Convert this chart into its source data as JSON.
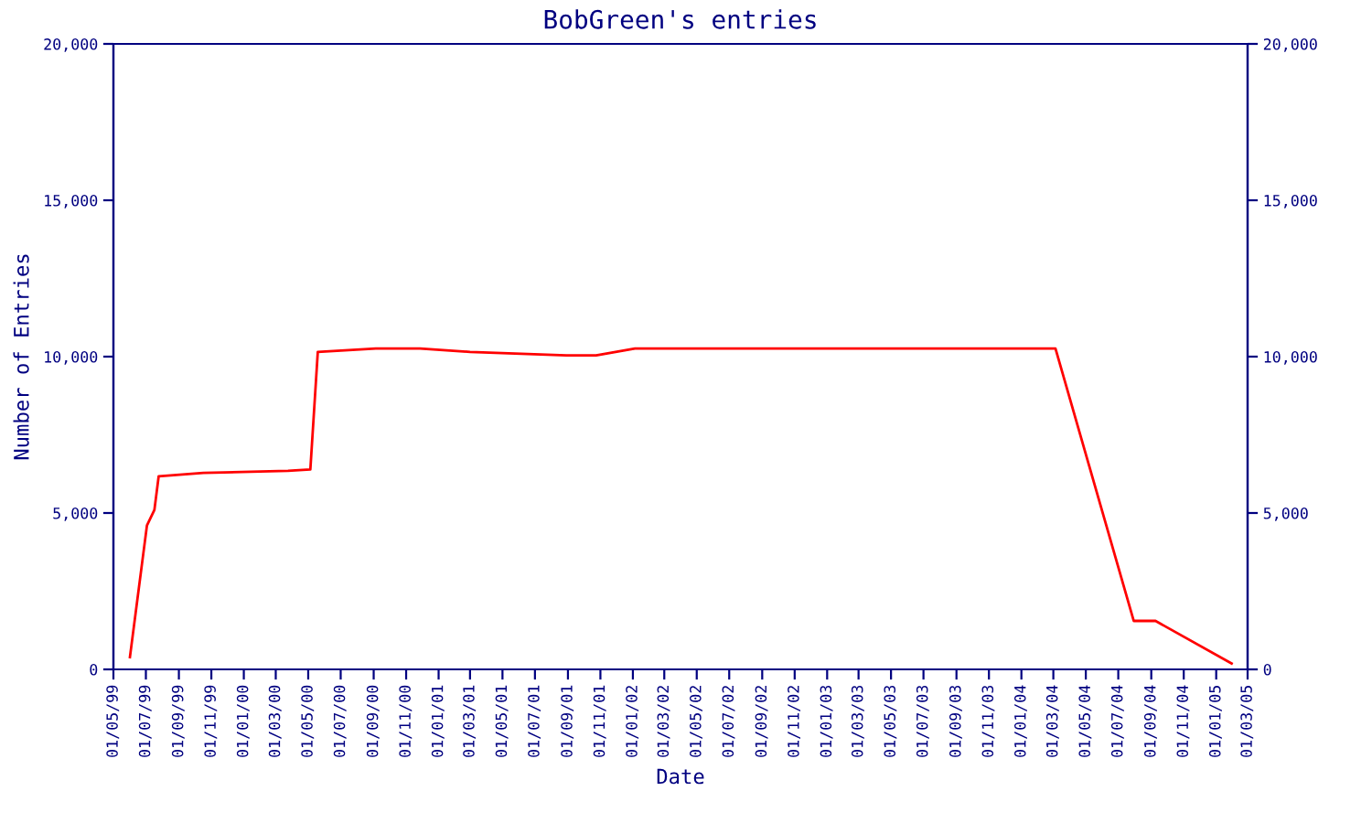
{
  "chart_data": {
    "type": "line",
    "title": "BobGreen's entries",
    "xlabel": "Date",
    "ylabel": "Number of Entries",
    "x": [
      "1999-06-01",
      "1999-07-03",
      "1999-07-17",
      "1999-07-25",
      "1999-10-17",
      "2000-03-24",
      "2000-05-05",
      "2000-05-19",
      "2000-09-05",
      "2000-11-27",
      "2001-03-01",
      "2001-08-29",
      "2001-10-24",
      "2002-01-05",
      "2004-03-05",
      "2004-07-30",
      "2004-09-09",
      "2005-01-30"
    ],
    "series": [
      {
        "color": "#ff0000",
        "values": [
          390,
          4600,
          5100,
          6170,
          6280,
          6350,
          6390,
          10150,
          10260,
          10260,
          10150,
          10040,
          10040,
          10260,
          10260,
          1550,
          1550,
          190
        ]
      }
    ],
    "xlim": [
      "1999-05-01",
      "2005-03-01"
    ],
    "xticks": [
      {
        "value": "1999-05-01",
        "label": "01/05/99"
      },
      {
        "value": "1999-07-01",
        "label": "01/07/99"
      },
      {
        "value": "1999-09-01",
        "label": "01/09/99"
      },
      {
        "value": "1999-11-01",
        "label": "01/11/99"
      },
      {
        "value": "2000-01-01",
        "label": "01/01/00"
      },
      {
        "value": "2000-03-01",
        "label": "01/03/00"
      },
      {
        "value": "2000-05-01",
        "label": "01/05/00"
      },
      {
        "value": "2000-07-01",
        "label": "01/07/00"
      },
      {
        "value": "2000-09-01",
        "label": "01/09/00"
      },
      {
        "value": "2000-11-01",
        "label": "01/11/00"
      },
      {
        "value": "2001-01-01",
        "label": "01/01/01"
      },
      {
        "value": "2001-03-01",
        "label": "01/03/01"
      },
      {
        "value": "2001-05-01",
        "label": "01/05/01"
      },
      {
        "value": "2001-07-01",
        "label": "01/07/01"
      },
      {
        "value": "2001-09-01",
        "label": "01/09/01"
      },
      {
        "value": "2001-11-01",
        "label": "01/11/01"
      },
      {
        "value": "2002-01-01",
        "label": "01/01/02"
      },
      {
        "value": "2002-03-01",
        "label": "01/03/02"
      },
      {
        "value": "2002-05-01",
        "label": "01/05/02"
      },
      {
        "value": "2002-07-01",
        "label": "01/07/02"
      },
      {
        "value": "2002-09-01",
        "label": "01/09/02"
      },
      {
        "value": "2002-11-01",
        "label": "01/11/02"
      },
      {
        "value": "2003-01-01",
        "label": "01/01/03"
      },
      {
        "value": "2003-03-01",
        "label": "01/03/03"
      },
      {
        "value": "2003-05-01",
        "label": "01/05/03"
      },
      {
        "value": "2003-07-01",
        "label": "01/07/03"
      },
      {
        "value": "2003-09-01",
        "label": "01/09/03"
      },
      {
        "value": "2003-11-01",
        "label": "01/11/03"
      },
      {
        "value": "2004-01-01",
        "label": "01/01/04"
      },
      {
        "value": "2004-03-01",
        "label": "01/03/04"
      },
      {
        "value": "2004-05-01",
        "label": "01/05/04"
      },
      {
        "value": "2004-07-01",
        "label": "01/07/04"
      },
      {
        "value": "2004-09-01",
        "label": "01/09/04"
      },
      {
        "value": "2004-11-01",
        "label": "01/11/04"
      },
      {
        "value": "2005-01-01",
        "label": "01/01/05"
      },
      {
        "value": "2005-03-01",
        "label": "01/03/05"
      }
    ],
    "ylim": [
      0,
      20000
    ],
    "yticks": [
      {
        "value": 0,
        "label": "0"
      },
      {
        "value": 5000,
        "label": "5,000"
      },
      {
        "value": 10000,
        "label": "10,000"
      },
      {
        "value": 15000,
        "label": "15,000"
      },
      {
        "value": 20000,
        "label": "20,000"
      }
    ],
    "y2lim": [
      0,
      20000
    ],
    "y2ticks": [
      {
        "value": 0,
        "label": "0"
      },
      {
        "value": 5000,
        "label": "5,000"
      },
      {
        "value": 10000,
        "label": "10,000"
      },
      {
        "value": 15000,
        "label": "15,000"
      },
      {
        "value": 20000,
        "label": "20,000"
      }
    ],
    "grid": false,
    "marker": "none",
    "line_style": "solid"
  }
}
